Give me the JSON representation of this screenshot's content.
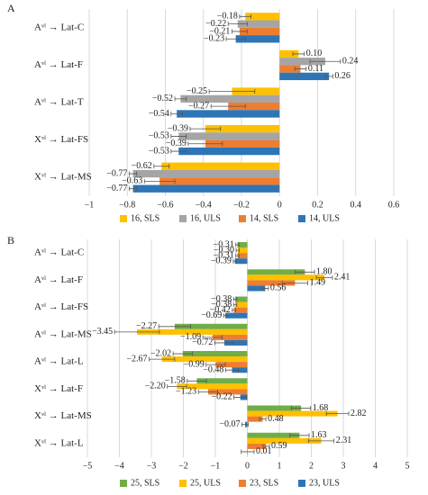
{
  "chart_data": [
    {
      "type": "bar",
      "orientation": "horizontal",
      "label": "A",
      "categories": [
        "Aᵛˡ → Lat-C",
        "Aᵛˡ → Lat-F",
        "Aᵛˡ → Lat-T",
        "Xᵛˡ → Lat-FS",
        "Xᵛˡ → Lat-MS"
      ],
      "series": [
        {
          "name": "16, SLS",
          "color": "#FFC000",
          "values": [
            -0.18,
            0.1,
            -0.25,
            -0.39,
            -0.62
          ],
          "value_labels": [
            "−0.18",
            "0.10",
            "−0.25",
            "−0.39",
            "−0.62"
          ],
          "errors": [
            0.03,
            0.03,
            0.12,
            0.08,
            0.04
          ]
        },
        {
          "name": "16, ULS",
          "color": "#A5A5A5",
          "values": [
            -0.22,
            0.24,
            -0.52,
            -0.53,
            -0.77
          ],
          "value_labels": [
            "−0.22",
            "0.24",
            "−0.52",
            "−0.53",
            "−0.77"
          ],
          "errors": [
            0.05,
            0.08,
            0.03,
            0.04,
            0.02
          ]
        },
        {
          "name": "14, SLS",
          "color": "#ED7D31",
          "values": [
            -0.21,
            0.11,
            -0.27,
            -0.39,
            -0.63
          ],
          "value_labels": [
            "−0.21",
            "0.11",
            "−0.27",
            "−0.39",
            "−0.63"
          ],
          "errors": [
            0.04,
            0.03,
            0.09,
            0.09,
            0.08
          ]
        },
        {
          "name": "14, ULS",
          "color": "#2E75B6",
          "values": [
            -0.23,
            0.26,
            -0.54,
            -0.53,
            -0.77
          ],
          "value_labels": [
            "−0.23",
            "0.26",
            "−0.54",
            "−0.53",
            "−0.77"
          ],
          "errors": [
            0.05,
            0.02,
            0.03,
            0.04,
            0.02
          ]
        }
      ],
      "xlim": [
        -1,
        0.6
      ],
      "xticks": [
        {
          "value": -1,
          "label": "−1"
        },
        {
          "value": -0.8,
          "label": "−0.8"
        },
        {
          "value": -0.6,
          "label": "−0.6"
        },
        {
          "value": -0.4,
          "label": "−0.4"
        },
        {
          "value": -0.2,
          "label": "−0.2"
        },
        0,
        0.2,
        0.4,
        0.6
      ],
      "grid": true
    },
    {
      "type": "bar",
      "orientation": "horizontal",
      "label": "B",
      "categories": [
        "Aᵛˡ → Lat-C",
        "Aᵛˡ → Lat-F",
        "Aᵛˡ → Lat-FS",
        "Aᵛˡ → Lat-MS",
        "Aᵛˡ → Lat-L",
        "Xᵛˡ → Lat-F",
        "Xᵛˡ → Lat-MS",
        "Xᵛˡ → Lat-L"
      ],
      "series": [
        {
          "name": "25, SLS",
          "color": "#70AD47",
          "values": [
            -0.31,
            1.8,
            -0.38,
            -2.27,
            -2.02,
            -1.58,
            1.68,
            1.63
          ],
          "value_labels": [
            "−0.31",
            "1.80",
            "−0.38",
            "−2.27",
            "−2.02",
            "−1.58",
            "1.68",
            "1.63"
          ],
          "errors": [
            0.05,
            0.3,
            0.05,
            0.5,
            0.3,
            0.3,
            0.3,
            0.3
          ]
        },
        {
          "name": "25, ULS",
          "color": "#FFC000",
          "values": [
            -0.3,
            2.41,
            -0.38,
            -3.45,
            -2.67,
            -2.2,
            2.82,
            2.31
          ],
          "value_labels": [
            "−0.30",
            "2.41",
            "−0.38",
            "−3.45",
            "−2.67",
            "−2.20",
            "2.82",
            "2.31"
          ],
          "errors": [
            0.05,
            0.25,
            0.05,
            0.7,
            0.4,
            0.3,
            0.35,
            0.4
          ]
        },
        {
          "name": "23, SLS",
          "color": "#ED7D31",
          "values": [
            -0.31,
            1.49,
            -0.42,
            -1.09,
            -0.99,
            -1.23,
            0.48,
            0.59
          ],
          "value_labels": [
            "−0.31",
            "1.49",
            "−0.42",
            "−1.09",
            "−0.99",
            "−1.23",
            "0.48",
            "0.59"
          ],
          "errors": [
            0.05,
            0.4,
            0.05,
            0.3,
            0.3,
            0.3,
            0.1,
            0.1
          ]
        },
        {
          "name": "23, ULS",
          "color": "#2E75B6",
          "values": [
            -0.39,
            0.56,
            -0.69,
            -0.72,
            -0.48,
            -0.22,
            -0.07,
            0.01
          ],
          "value_labels": [
            "−0.39",
            "0.56",
            "−0.69",
            "−0.72",
            "−0.48",
            "−0.22",
            "−0.07",
            "0.01"
          ],
          "errors": [
            0.05,
            0.1,
            0.05,
            0.3,
            0.2,
            0.2,
            0.1,
            0.2
          ]
        }
      ],
      "xlim": [
        -5,
        5
      ],
      "xticks": [
        {
          "value": -5,
          "label": "−5"
        },
        {
          "value": -4,
          "label": "−4"
        },
        {
          "value": -3,
          "label": "−3"
        },
        {
          "value": -2,
          "label": "−2"
        },
        {
          "value": -1,
          "label": "−1"
        },
        0,
        1,
        2,
        3,
        4,
        5
      ],
      "grid": true
    }
  ]
}
